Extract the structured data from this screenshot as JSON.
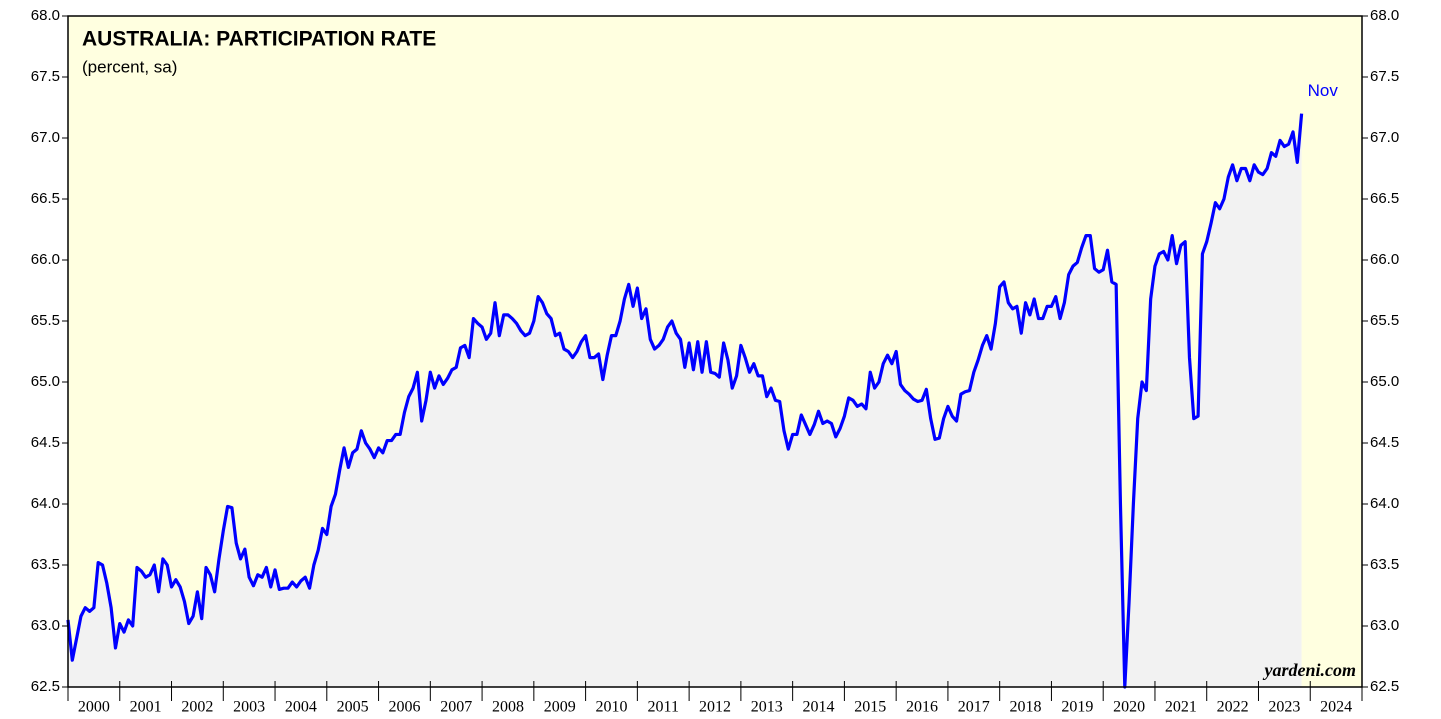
{
  "chart_data": {
    "type": "line",
    "title": "AUSTRALIA: PARTICIPATION RATE",
    "subtitle": "(percent, sa)",
    "annotation": "Nov",
    "source": "yardeni.com",
    "categories": [
      "2000",
      "2001",
      "2002",
      "2003",
      "2004",
      "2005",
      "2006",
      "2007",
      "2008",
      "2009",
      "2010",
      "2011",
      "2012",
      "2013",
      "2014",
      "2015",
      "2016",
      "2017",
      "2018",
      "2019",
      "2020",
      "2021",
      "2022",
      "2023",
      "2024"
    ],
    "xlim": [
      2000,
      2025
    ],
    "xticks": [
      2000,
      2001,
      2002,
      2003,
      2004,
      2005,
      2006,
      2007,
      2008,
      2009,
      2010,
      2011,
      2012,
      2013,
      2014,
      2015,
      2016,
      2017,
      2018,
      2019,
      2020,
      2021,
      2022,
      2023,
      2024,
      2025
    ],
    "ylim": [
      62.5,
      68
    ],
    "yticks": [
      {
        "value": 62.5,
        "label": "62.5"
      },
      {
        "value": 63,
        "label": "63.0"
      },
      {
        "value": 63.5,
        "label": "63.5"
      },
      {
        "value": 64,
        "label": "64.0"
      },
      {
        "value": 64.5,
        "label": "64.5"
      },
      {
        "value": 65,
        "label": "65.0"
      },
      {
        "value": 65.5,
        "label": "65.5"
      },
      {
        "value": 66,
        "label": "66.0"
      },
      {
        "value": 66.5,
        "label": "66.5"
      },
      {
        "value": 67,
        "label": "67.0"
      },
      {
        "value": 67.5,
        "label": "67.5"
      },
      {
        "value": 68,
        "label": "68.0"
      }
    ],
    "background": "#ffffe0",
    "area_color": "#f2f2f2",
    "x": [
      2000,
      2000.083,
      2000.167,
      2000.25,
      2000.333,
      2000.417,
      2000.5,
      2000.583,
      2000.667,
      2000.75,
      2000.833,
      2000.917,
      2001,
      2001.083,
      2001.167,
      2001.25,
      2001.333,
      2001.417,
      2001.5,
      2001.583,
      2001.667,
      2001.75,
      2001.833,
      2001.917,
      2002,
      2002.083,
      2002.167,
      2002.25,
      2002.333,
      2002.417,
      2002.5,
      2002.583,
      2002.667,
      2002.75,
      2002.833,
      2002.917,
      2003,
      2003.083,
      2003.167,
      2003.25,
      2003.333,
      2003.417,
      2003.5,
      2003.583,
      2003.667,
      2003.75,
      2003.833,
      2003.917,
      2004,
      2004.083,
      2004.167,
      2004.25,
      2004.333,
      2004.417,
      2004.5,
      2004.583,
      2004.667,
      2004.75,
      2004.833,
      2004.917,
      2005,
      2005.083,
      2005.167,
      2005.25,
      2005.333,
      2005.417,
      2005.5,
      2005.583,
      2005.667,
      2005.75,
      2005.833,
      2005.917,
      2006,
      2006.083,
      2006.167,
      2006.25,
      2006.333,
      2006.417,
      2006.5,
      2006.583,
      2006.667,
      2006.75,
      2006.833,
      2006.917,
      2007,
      2007.083,
      2007.167,
      2007.25,
      2007.333,
      2007.417,
      2007.5,
      2007.583,
      2007.667,
      2007.75,
      2007.833,
      2007.917,
      2008,
      2008.083,
      2008.167,
      2008.25,
      2008.333,
      2008.417,
      2008.5,
      2008.583,
      2008.667,
      2008.75,
      2008.833,
      2008.917,
      2009,
      2009.083,
      2009.167,
      2009.25,
      2009.333,
      2009.417,
      2009.5,
      2009.583,
      2009.667,
      2009.75,
      2009.833,
      2009.917,
      2010,
      2010.083,
      2010.167,
      2010.25,
      2010.333,
      2010.417,
      2010.5,
      2010.583,
      2010.667,
      2010.75,
      2010.833,
      2010.917,
      2011,
      2011.083,
      2011.167,
      2011.25,
      2011.333,
      2011.417,
      2011.5,
      2011.583,
      2011.667,
      2011.75,
      2011.833,
      2011.917,
      2012,
      2012.083,
      2012.167,
      2012.25,
      2012.333,
      2012.417,
      2012.5,
      2012.583,
      2012.667,
      2012.75,
      2012.833,
      2012.917,
      2013,
      2013.083,
      2013.167,
      2013.25,
      2013.333,
      2013.417,
      2013.5,
      2013.583,
      2013.667,
      2013.75,
      2013.833,
      2013.917,
      2014,
      2014.083,
      2014.167,
      2014.25,
      2014.333,
      2014.417,
      2014.5,
      2014.583,
      2014.667,
      2014.75,
      2014.833,
      2014.917,
      2015,
      2015.083,
      2015.167,
      2015.25,
      2015.333,
      2015.417,
      2015.5,
      2015.583,
      2015.667,
      2015.75,
      2015.833,
      2015.917,
      2016,
      2016.083,
      2016.167,
      2016.25,
      2016.333,
      2016.417,
      2016.5,
      2016.583,
      2016.667,
      2016.75,
      2016.833,
      2016.917,
      2017,
      2017.083,
      2017.167,
      2017.25,
      2017.333,
      2017.417,
      2017.5,
      2017.583,
      2017.667,
      2017.75,
      2017.833,
      2017.917,
      2018,
      2018.083,
      2018.167,
      2018.25,
      2018.333,
      2018.417,
      2018.5,
      2018.583,
      2018.667,
      2018.75,
      2018.833,
      2018.917,
      2019,
      2019.083,
      2019.167,
      2019.25,
      2019.333,
      2019.417,
      2019.5,
      2019.583,
      2019.667,
      2019.75,
      2019.833,
      2019.917,
      2020,
      2020.083,
      2020.167,
      2020.25,
      2020.333,
      2020.417,
      2020.5,
      2020.583,
      2020.667,
      2020.75,
      2020.833,
      2020.917,
      2021,
      2021.083,
      2021.167,
      2021.25,
      2021.333,
      2021.417,
      2021.5,
      2021.583,
      2021.667,
      2021.75,
      2021.833,
      2021.917,
      2022,
      2022.083,
      2022.167,
      2022.25,
      2022.333,
      2022.417,
      2022.5,
      2022.583,
      2022.667,
      2022.75,
      2022.833,
      2022.917,
      2023,
      2023.083,
      2023.167,
      2023.25,
      2023.333,
      2023.417,
      2023.5,
      2023.583,
      2023.667,
      2023.75,
      2023.833
    ],
    "series": [
      {
        "color": "#0000ff",
        "values": [
          63.05,
          62.72,
          62.9,
          63.08,
          63.15,
          63.12,
          63.15,
          63.52,
          63.5,
          63.35,
          63.15,
          62.82,
          63.02,
          62.95,
          63.05,
          63.0,
          63.48,
          63.45,
          63.4,
          63.42,
          63.5,
          63.28,
          63.55,
          63.5,
          63.32,
          63.38,
          63.32,
          63.2,
          63.02,
          63.08,
          63.28,
          63.06,
          63.48,
          63.42,
          63.28,
          63.55,
          63.78,
          63.98,
          63.97,
          63.68,
          63.55,
          63.63,
          63.4,
          63.33,
          63.42,
          63.4,
          63.48,
          63.32,
          63.46,
          63.3,
          63.31,
          63.31,
          63.36,
          63.32,
          63.37,
          63.4,
          63.31,
          63.5,
          63.62,
          63.8,
          63.75,
          63.98,
          64.08,
          64.28,
          64.46,
          64.3,
          64.42,
          64.45,
          64.6,
          64.5,
          64.45,
          64.38,
          64.46,
          64.42,
          64.52,
          64.52,
          64.57,
          64.57,
          64.75,
          64.88,
          64.95,
          65.08,
          64.68,
          64.85,
          65.08,
          64.95,
          65.05,
          64.98,
          65.03,
          65.1,
          65.12,
          65.28,
          65.3,
          65.2,
          65.52,
          65.48,
          65.45,
          65.35,
          65.4,
          65.65,
          65.38,
          65.55,
          65.55,
          65.52,
          65.48,
          65.42,
          65.38,
          65.4,
          65.5,
          65.7,
          65.65,
          65.56,
          65.52,
          65.38,
          65.4,
          65.27,
          65.25,
          65.2,
          65.25,
          65.33,
          65.38,
          65.2,
          65.2,
          65.23,
          65.02,
          65.22,
          65.38,
          65.38,
          65.5,
          65.68,
          65.8,
          65.62,
          65.77,
          65.52,
          65.6,
          65.35,
          65.27,
          65.3,
          65.35,
          65.45,
          65.5,
          65.4,
          65.35,
          65.12,
          65.32,
          65.1,
          65.33,
          65.08,
          65.33,
          65.08,
          65.07,
          65.04,
          65.32,
          65.18,
          64.95,
          65.05,
          65.3,
          65.2,
          65.08,
          65.15,
          65.05,
          65.05,
          64.88,
          64.95,
          64.85,
          64.84,
          64.6,
          64.45,
          64.57,
          64.57,
          64.73,
          64.65,
          64.57,
          64.65,
          64.76,
          64.66,
          64.68,
          64.66,
          64.55,
          64.62,
          64.72,
          64.87,
          64.85,
          64.8,
          64.82,
          64.78,
          65.08,
          64.95,
          65.0,
          65.15,
          65.22,
          65.15,
          65.25,
          64.98,
          64.93,
          64.9,
          64.86,
          64.84,
          64.85,
          64.94,
          64.7,
          64.53,
          64.54,
          64.7,
          64.8,
          64.72,
          64.68,
          64.9,
          64.92,
          64.93,
          65.08,
          65.18,
          65.3,
          65.38,
          65.27,
          65.48,
          65.78,
          65.82,
          65.65,
          65.6,
          65.62,
          65.4,
          65.65,
          65.55,
          65.68,
          65.52,
          65.52,
          65.62,
          65.62,
          65.7,
          65.52,
          65.65,
          65.88,
          65.95,
          65.98,
          66.1,
          66.2,
          66.2,
          65.93,
          65.9,
          65.92,
          66.08,
          65.82,
          65.8,
          64.0,
          62.5,
          63.2,
          64.0,
          64.7,
          65.0,
          64.93,
          65.68,
          65.95,
          66.05,
          66.07,
          66.0,
          66.2,
          65.97,
          66.12,
          66.15,
          65.2,
          64.7,
          64.72,
          66.05,
          66.15,
          66.3,
          66.47,
          66.42,
          66.5,
          66.68,
          66.78,
          66.65,
          66.75,
          66.75,
          66.65,
          66.78,
          66.72,
          66.7,
          66.75,
          66.88,
          66.85,
          66.98,
          66.93,
          66.95,
          67.05,
          66.8,
          67.2
        ]
      }
    ]
  }
}
